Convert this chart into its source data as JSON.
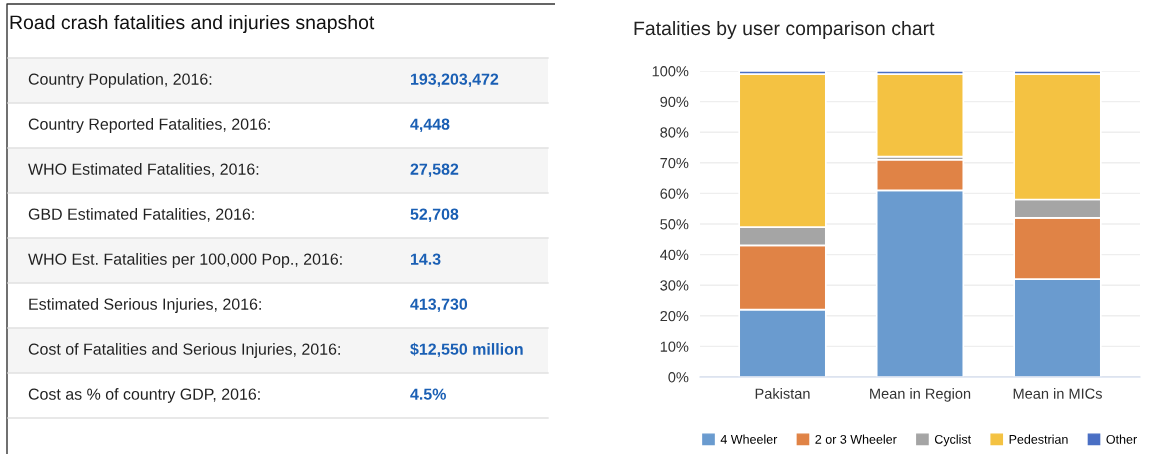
{
  "chart_data": [
    {
      "type": "other",
      "title": "Road crash fatalities and injuries snapshot",
      "categories": [
        "Country Population, 2016",
        "Country Reported Fatalities, 2016",
        "WHO Estimated Fatalities, 2016",
        "GBD Estimated Fatalities, 2016",
        "WHO Est. Fatalities per 100,000 Pop., 2016",
        "Estimated Serious Injuries, 2016",
        "Cost of Fatalities and Serious Injuries, 2016",
        "Cost as % of country GDP, 2016"
      ],
      "annotations": [
        ":"
      ],
      "value_labels": [
        "193,203,472",
        "4,448",
        "27,582",
        "52,708",
        "14.3",
        "413,730",
        "$12,550 million",
        "4.5%"
      ]
    },
    {
      "type": "bar",
      "stacked": true,
      "title": "Fatalities by user comparison chart",
      "categories": [
        "Pakistan",
        "Mean in Region",
        "Mean in MICs"
      ],
      "series": [
        {
          "name": "4 Wheeler",
          "color": "#6a9bcf",
          "values": [
            22,
            61,
            32
          ]
        },
        {
          "name": "2 or 3 Wheeler",
          "color": "#e08346",
          "values": [
            21,
            10,
            20
          ]
        },
        {
          "name": "Cyclist",
          "color": "#a5a5a5",
          "values": [
            6,
            1,
            6
          ]
        },
        {
          "name": "Pedestrian",
          "color": "#f4c242",
          "values": [
            50,
            27,
            41
          ]
        },
        {
          "name": "Other",
          "color": "#4a6fc4",
          "values": [
            1,
            1,
            1
          ]
        }
      ],
      "ylim": [
        0,
        100
      ],
      "yticks": [
        {
          "value": 0,
          "label": "0%"
        },
        {
          "value": 10,
          "label": "10%"
        },
        {
          "value": 20,
          "label": "20%"
        },
        {
          "value": 30,
          "label": "30%"
        },
        {
          "value": 40,
          "label": "40%"
        },
        {
          "value": 50,
          "label": "50%"
        },
        {
          "value": 60,
          "label": "60%"
        },
        {
          "value": 70,
          "label": "70%"
        },
        {
          "value": 80,
          "label": "80%"
        },
        {
          "value": 90,
          "label": "90%"
        },
        {
          "value": 100,
          "label": "100%"
        }
      ],
      "grid": "y",
      "legend": "bottom"
    }
  ]
}
